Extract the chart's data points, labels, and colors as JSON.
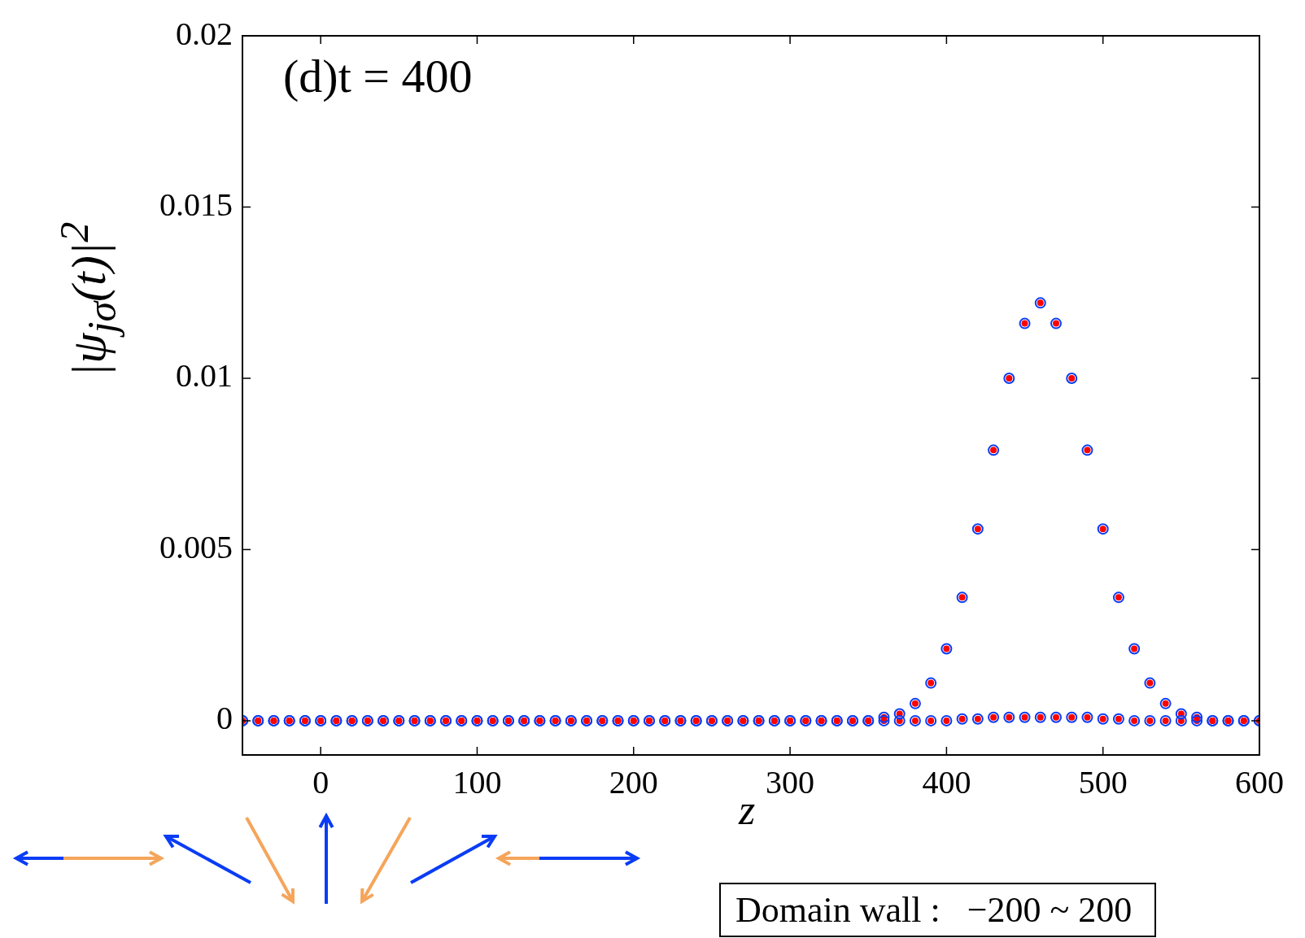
{
  "chart_data": {
    "type": "scatter",
    "xlabel": "z",
    "ylabel": "|ψ$_{jσ}$(t)|$^{2}$",
    "annotations": [
      "(d)t = 400",
      "Domain wall :   −200 ~ 200"
    ],
    "x": [
      -50,
      -40,
      -30,
      -20,
      -10,
      0,
      10,
      20,
      30,
      40,
      50,
      60,
      70,
      80,
      90,
      100,
      110,
      120,
      130,
      140,
      150,
      160,
      170,
      180,
      190,
      200,
      210,
      220,
      230,
      240,
      250,
      260,
      270,
      280,
      290,
      300,
      310,
      320,
      330,
      340,
      350,
      360,
      370,
      380,
      390,
      400,
      410,
      420,
      430,
      440,
      450,
      460,
      470,
      480,
      490,
      500,
      510,
      520,
      530,
      540,
      550,
      560,
      570,
      580,
      590,
      600
    ],
    "series": [
      {
        "color": "#0a3cf5",
        "marker": "circle",
        "values": [
          0,
          0,
          0,
          0,
          0,
          0,
          0,
          0,
          0,
          0,
          0,
          0,
          0,
          0,
          0,
          0,
          0,
          0,
          0,
          0,
          0,
          0,
          0,
          0,
          0,
          0,
          0,
          0,
          0,
          0,
          0,
          0,
          0,
          0,
          0,
          0,
          0,
          0,
          0,
          0,
          0,
          0.0001,
          0.0002,
          0.0005,
          0.0011,
          0.0021,
          0.0036,
          0.0056,
          0.0079,
          0.01,
          0.0116,
          0.0122,
          0.0116,
          0.01,
          0.0079,
          0.0056,
          0.0036,
          0.0021,
          0.0011,
          0.0005,
          0.0002,
          0.0001,
          0,
          0,
          0,
          0
        ]
      },
      {
        "color": "#0a3cf5",
        "marker": "circle",
        "values": [
          0,
          0,
          0,
          0,
          0,
          0,
          0,
          0,
          0,
          0,
          0,
          0,
          0,
          0,
          0,
          0,
          0,
          0,
          0,
          0,
          0,
          0,
          0,
          0,
          0,
          0,
          0,
          0,
          0,
          0,
          0,
          0,
          0,
          0,
          0,
          0,
          0,
          0,
          0,
          0,
          0,
          0,
          0,
          0,
          0,
          0,
          5e-05,
          5e-05,
          0.0001,
          0.0001,
          0.0001,
          0.0001,
          0.0001,
          0.0001,
          0.0001,
          5e-05,
          5e-05,
          0,
          0,
          0,
          0,
          0,
          0,
          0,
          0,
          0
        ]
      },
      {
        "color": "#ff0000",
        "marker": "dot",
        "values": [
          0,
          0,
          0,
          0,
          0,
          0,
          0,
          0,
          0,
          0,
          0,
          0,
          0,
          0,
          0,
          0,
          0,
          0,
          0,
          0,
          0,
          0,
          0,
          0,
          0,
          0,
          0,
          0,
          0,
          0,
          0,
          0,
          0,
          0,
          0,
          0,
          0,
          0,
          0,
          0,
          0,
          0.0001,
          0.0002,
          0.0005,
          0.0011,
          0.0021,
          0.0036,
          0.0056,
          0.0079,
          0.01,
          0.0116,
          0.0122,
          0.0116,
          0.01,
          0.0079,
          0.0056,
          0.0036,
          0.0021,
          0.0011,
          0.0005,
          0.0002,
          0.0001,
          0,
          0,
          0,
          0
        ]
      },
      {
        "color": "#ff0000",
        "marker": "dot",
        "values": [
          0,
          0,
          0,
          0,
          0,
          0,
          0,
          0,
          0,
          0,
          0,
          0,
          0,
          0,
          0,
          0,
          0,
          0,
          0,
          0,
          0,
          0,
          0,
          0,
          0,
          0,
          0,
          0,
          0,
          0,
          0,
          0,
          0,
          0,
          0,
          0,
          0,
          0,
          0,
          0,
          0,
          0,
          0,
          0,
          0,
          0,
          5e-05,
          5e-05,
          0.0001,
          0.0001,
          0.0001,
          0.0001,
          0.0001,
          0.0001,
          0.0001,
          5e-05,
          5e-05,
          0,
          0,
          0,
          0,
          0,
          0,
          0,
          0,
          0
        ]
      }
    ],
    "xlim": [
      -50,
      600
    ],
    "xticks": [
      0,
      100,
      200,
      300,
      400,
      500,
      600
    ],
    "ylim": [
      -0.001,
      0.02
    ],
    "yticks": [
      0,
      0.005,
      0.01,
      0.015,
      0.02
    ],
    "grid": false,
    "legend": false
  }
}
